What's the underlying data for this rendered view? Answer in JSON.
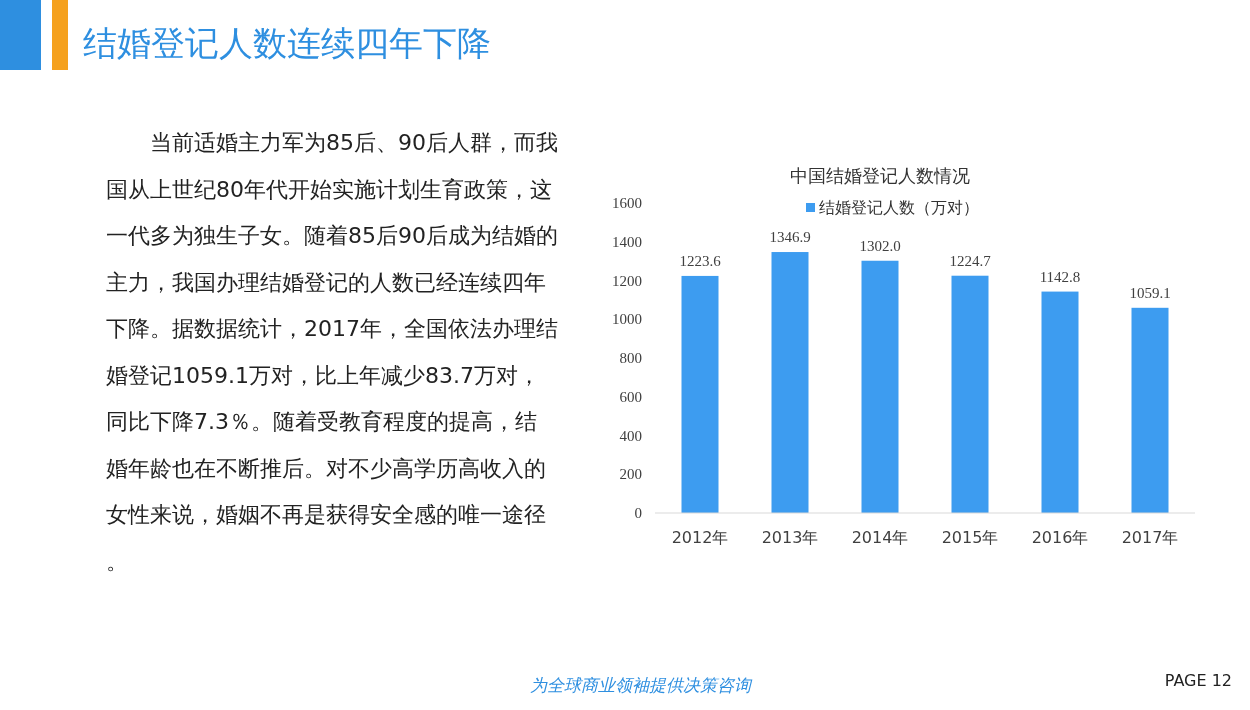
{
  "chart_data": {
    "type": "bar",
    "title": "结婚登记人数连续四年下降",
    "subtitle": "中国结婚登记人数情况",
    "categories": [
      "2012年",
      "2013年",
      "2014年",
      "2015年",
      "2016年",
      "2017年"
    ],
    "series": [
      {
        "name": "结婚登记人数（万对）",
        "color": "#3d9cf0",
        "values": [
          1223.6,
          1346.9,
          1302.0,
          1224.7,
          1142.8,
          1059.1
        ],
        "value_labels": [
          "1223.6",
          "1346.9",
          "1302.0",
          "1224.7",
          "1142.8",
          "1059.1"
        ]
      }
    ],
    "ylim": [
      0,
      1600
    ],
    "yticks": [
      0,
      200,
      400,
      600,
      800,
      1000,
      1200,
      1400,
      1600
    ],
    "grid": false,
    "legend": "top",
    "annotations": [
      "当前适婚主力军为85后、90后人群，而我国从上世纪80年代开始实施计划生育政策，这一代多为独生子女。随着85后90后成为结婚的主力，我国办理结婚登记的人数已经连续四年下降。据数据统计，2017年，全国依法办理结婚登记1059.1万对，比上年减少83.7万对，同比下降7.3％。随着受教育程度的提高，结婚年龄也在不断推后。对不少高学历高收入的女性来说，婚姻不再是获得安全感的唯一途径。",
      "为全球商业领袖提供决策咨询",
      "PAGE 12"
    ]
  }
}
